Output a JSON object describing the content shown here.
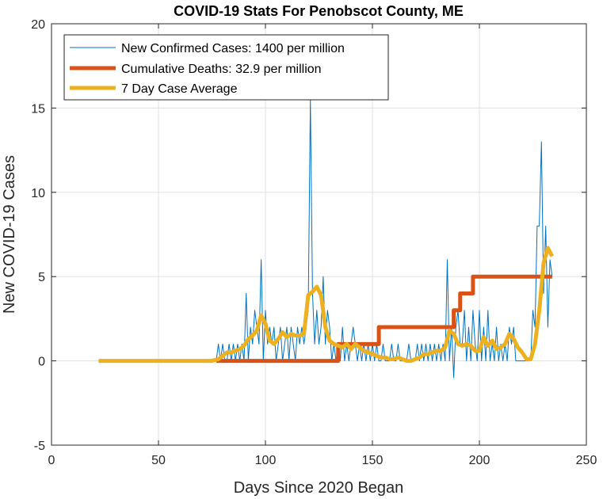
{
  "chart_data": {
    "type": "line",
    "title": "COVID-19 Stats For Penobscot County, ME",
    "xlabel": "Days Since 2020 Began",
    "ylabel": "New COVID-19 Cases",
    "xlim": [
      0,
      250
    ],
    "ylim": [
      -5,
      20
    ],
    "xticks": [
      0,
      50,
      100,
      150,
      200,
      250
    ],
    "yticks": [
      -5,
      0,
      5,
      10,
      15,
      20
    ],
    "grid": true,
    "legend_position": "top-left",
    "series": [
      {
        "name": "New Confirmed Cases: 1400 per million",
        "color": "#0072BD",
        "style": "thin",
        "points": [
          [
            22,
            0
          ],
          [
            30,
            0
          ],
          [
            40,
            0
          ],
          [
            50,
            0
          ],
          [
            60,
            0
          ],
          [
            70,
            0
          ],
          [
            76,
            0
          ],
          [
            77,
            0
          ],
          [
            78,
            1
          ],
          [
            79,
            0
          ],
          [
            80,
            1
          ],
          [
            81,
            0
          ],
          [
            82,
            0
          ],
          [
            83,
            1
          ],
          [
            84,
            0
          ],
          [
            85,
            1
          ],
          [
            86,
            0
          ],
          [
            87,
            1
          ],
          [
            88,
            0
          ],
          [
            89,
            1
          ],
          [
            90,
            0
          ],
          [
            91,
            4
          ],
          [
            92,
            0
          ],
          [
            93,
            2
          ],
          [
            94,
            1
          ],
          [
            95,
            3
          ],
          [
            96,
            2
          ],
          [
            97,
            1
          ],
          [
            98,
            6
          ],
          [
            99,
            0
          ],
          [
            100,
            3
          ],
          [
            101,
            1
          ],
          [
            102,
            2
          ],
          [
            103,
            1
          ],
          [
            104,
            2
          ],
          [
            105,
            0
          ],
          [
            106,
            1
          ],
          [
            107,
            2
          ],
          [
            108,
            0
          ],
          [
            109,
            1
          ],
          [
            110,
            2
          ],
          [
            111,
            0
          ],
          [
            112,
            2
          ],
          [
            113,
            1
          ],
          [
            114,
            0
          ],
          [
            115,
            2
          ],
          [
            116,
            1
          ],
          [
            117,
            2
          ],
          [
            118,
            1
          ],
          [
            119,
            2
          ],
          [
            120,
            3
          ],
          [
            121,
            15.5
          ],
          [
            122,
            4
          ],
          [
            123,
            1
          ],
          [
            124,
            3
          ],
          [
            125,
            1
          ],
          [
            126,
            2
          ],
          [
            127,
            5
          ],
          [
            128,
            1
          ],
          [
            129,
            3
          ],
          [
            130,
            2
          ],
          [
            131,
            0
          ],
          [
            132,
            1
          ],
          [
            133,
            0
          ],
          [
            134,
            1
          ],
          [
            135,
            0
          ],
          [
            136,
            2
          ],
          [
            137,
            0
          ],
          [
            138,
            1
          ],
          [
            139,
            0
          ],
          [
            140,
            1
          ],
          [
            141,
            2
          ],
          [
            142,
            1
          ],
          [
            143,
            0
          ],
          [
            144,
            1
          ],
          [
            145,
            0
          ],
          [
            146,
            1
          ],
          [
            147,
            0
          ],
          [
            148,
            1
          ],
          [
            149,
            0
          ],
          [
            150,
            1
          ],
          [
            151,
            0
          ],
          [
            152,
            1
          ],
          [
            153,
            0
          ],
          [
            154,
            0
          ],
          [
            155,
            1
          ],
          [
            156,
            0
          ],
          [
            157,
            0
          ],
          [
            158,
            0
          ],
          [
            159,
            1
          ],
          [
            160,
            0
          ],
          [
            161,
            0
          ],
          [
            162,
            1
          ],
          [
            163,
            0
          ],
          [
            164,
            0
          ],
          [
            165,
            0
          ],
          [
            166,
            0
          ],
          [
            167,
            1
          ],
          [
            168,
            0
          ],
          [
            169,
            0
          ],
          [
            170,
            0
          ],
          [
            171,
            1
          ],
          [
            172,
            0
          ],
          [
            173,
            1
          ],
          [
            174,
            0
          ],
          [
            175,
            1
          ],
          [
            176,
            0
          ],
          [
            177,
            1
          ],
          [
            178,
            0
          ],
          [
            179,
            1
          ],
          [
            180,
            0
          ],
          [
            181,
            1
          ],
          [
            182,
            0
          ],
          [
            183,
            1
          ],
          [
            184,
            0
          ],
          [
            185,
            6
          ],
          [
            186,
            0
          ],
          [
            187,
            2
          ],
          [
            188,
            -1
          ],
          [
            189,
            2
          ],
          [
            190,
            3
          ],
          [
            191,
            1
          ],
          [
            192,
            1
          ],
          [
            193,
            3
          ],
          [
            194,
            0
          ],
          [
            195,
            2
          ],
          [
            196,
            0
          ],
          [
            197,
            3
          ],
          [
            198,
            1
          ],
          [
            199,
            0
          ],
          [
            200,
            3
          ],
          [
            201,
            0
          ],
          [
            202,
            2
          ],
          [
            203,
            0
          ],
          [
            204,
            3
          ],
          [
            205,
            0
          ],
          [
            206,
            1
          ],
          [
            207,
            0
          ],
          [
            208,
            2
          ],
          [
            209,
            0
          ],
          [
            210,
            1
          ],
          [
            211,
            0
          ],
          [
            212,
            1
          ],
          [
            213,
            0
          ],
          [
            214,
            2
          ],
          [
            215,
            1
          ],
          [
            216,
            2
          ],
          [
            217,
            0
          ],
          [
            218,
            0
          ],
          [
            219,
            0
          ],
          [
            220,
            0
          ],
          [
            221,
            0
          ],
          [
            222,
            0
          ],
          [
            223,
            0
          ],
          [
            224,
            0
          ],
          [
            225,
            3
          ],
          [
            226,
            2
          ],
          [
            227,
            8
          ],
          [
            228,
            8
          ],
          [
            229,
            13
          ],
          [
            230,
            4
          ],
          [
            231,
            8
          ],
          [
            232,
            2
          ],
          [
            233,
            6
          ],
          [
            234,
            5
          ]
        ]
      },
      {
        "name": "Cumulative Deaths: 32.9 per million",
        "color": "#D95319",
        "style": "thick",
        "points": [
          [
            77,
            0
          ],
          [
            134,
            0
          ],
          [
            134,
            1
          ],
          [
            153,
            1
          ],
          [
            153,
            2
          ],
          [
            188,
            2
          ],
          [
            188,
            3
          ],
          [
            191,
            3
          ],
          [
            191,
            4
          ],
          [
            197,
            4
          ],
          [
            197,
            5
          ],
          [
            234,
            5
          ]
        ]
      },
      {
        "name": "7 Day Case Average",
        "color": "#EDB120",
        "style": "thick",
        "points": [
          [
            22,
            0
          ],
          [
            40,
            0
          ],
          [
            60,
            0
          ],
          [
            75,
            0
          ],
          [
            78,
            0.1
          ],
          [
            80,
            0.3
          ],
          [
            82,
            0.5
          ],
          [
            84,
            0.5
          ],
          [
            86,
            0.6
          ],
          [
            88,
            0.7
          ],
          [
            90,
            0.9
          ],
          [
            92,
            1.3
          ],
          [
            94,
            1.5
          ],
          [
            96,
            1.8
          ],
          [
            98,
            2.7
          ],
          [
            100,
            2.2
          ],
          [
            102,
            1.2
          ],
          [
            104,
            1.0
          ],
          [
            106,
            1.3
          ],
          [
            108,
            1.7
          ],
          [
            110,
            1.4
          ],
          [
            112,
            1.6
          ],
          [
            114,
            1.5
          ],
          [
            116,
            1.5
          ],
          [
            118,
            1.6
          ],
          [
            120,
            3.9
          ],
          [
            122,
            4.1
          ],
          [
            124,
            4.4
          ],
          [
            126,
            3.9
          ],
          [
            128,
            2.0
          ],
          [
            130,
            1.2
          ],
          [
            132,
            1.0
          ],
          [
            134,
            0.9
          ],
          [
            136,
            0.8
          ],
          [
            138,
            1.0
          ],
          [
            140,
            0.7
          ],
          [
            142,
            1.0
          ],
          [
            144,
            0.8
          ],
          [
            146,
            0.6
          ],
          [
            148,
            0.5
          ],
          [
            150,
            0.4
          ],
          [
            152,
            0.3
          ],
          [
            154,
            0.2
          ],
          [
            156,
            0.2
          ],
          [
            158,
            0.1
          ],
          [
            160,
            0.1
          ],
          [
            162,
            0.2
          ],
          [
            164,
            0.1
          ],
          [
            166,
            0.0
          ],
          [
            168,
            0.0
          ],
          [
            170,
            0.1
          ],
          [
            172,
            0.2
          ],
          [
            174,
            0.4
          ],
          [
            176,
            0.4
          ],
          [
            178,
            0.5
          ],
          [
            180,
            0.6
          ],
          [
            182,
            0.6
          ],
          [
            184,
            0.8
          ],
          [
            186,
            1.8
          ],
          [
            188,
            1.6
          ],
          [
            190,
            1.0
          ],
          [
            192,
            0.9
          ],
          [
            194,
            1.0
          ],
          [
            196,
            0.9
          ],
          [
            198,
            0.6
          ],
          [
            200,
            0.6
          ],
          [
            202,
            1.4
          ],
          [
            204,
            0.9
          ],
          [
            206,
            1.2
          ],
          [
            208,
            0.7
          ],
          [
            210,
            0.8
          ],
          [
            212,
            1.0
          ],
          [
            214,
            1.6
          ],
          [
            216,
            1.3
          ],
          [
            218,
            0.8
          ],
          [
            220,
            0.5
          ],
          [
            222,
            0.1
          ],
          [
            224,
            0.1
          ],
          [
            226,
            1.0
          ],
          [
            228,
            3.0
          ],
          [
            230,
            5.8
          ],
          [
            232,
            6.7
          ],
          [
            234,
            6.2
          ]
        ]
      }
    ]
  }
}
